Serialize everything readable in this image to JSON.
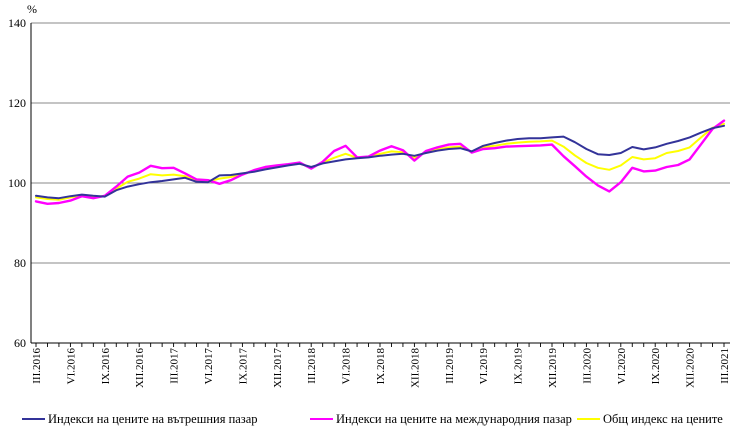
{
  "chart_data": {
    "type": "line",
    "unit": "%",
    "ylabel": "%",
    "ylim": [
      60,
      140
    ],
    "grid": true,
    "legend_position": "bottom",
    "axes": {
      "y_ticks": [
        140,
        120,
        100,
        80,
        60
      ],
      "x_tick_labels": [
        "III.2016",
        "VI.2016",
        "IX.2016",
        "XII.2016",
        "III.2017",
        "VI.2017",
        "IX.2017",
        "XII.2017",
        "III.2018",
        "VI.2018",
        "IX.2018",
        "XII.2018",
        "III.2019",
        "VI.2019",
        "IX.2019",
        "XII.2019",
        "III.2020",
        "VI.2020",
        "IX.2020",
        "XII.2020",
        "III.2021"
      ]
    },
    "x": [
      "III.2016",
      "IV.2016",
      "V.2016",
      "VI.2016",
      "VII.2016",
      "VIII.2016",
      "IX.2016",
      "X.2016",
      "XI.2016",
      "XII.2016",
      "I.2017",
      "II.2017",
      "III.2017",
      "IV.2017",
      "V.2017",
      "VI.2017",
      "VII.2017",
      "VIII.2017",
      "IX.2017",
      "X.2017",
      "XI.2017",
      "XII.2017",
      "I.2018",
      "II.2018",
      "III.2018",
      "IV.2018",
      "V.2018",
      "VI.2018",
      "VII.2018",
      "VIII.2018",
      "IX.2018",
      "X.2018",
      "XI.2018",
      "XII.2018",
      "I.2019",
      "II.2019",
      "III.2019",
      "IV.2019",
      "V.2019",
      "VI.2019",
      "VII.2019",
      "VIII.2019",
      "IX.2019",
      "X.2019",
      "XI.2019",
      "XII.2019",
      "I.2020",
      "II.2020",
      "III.2020",
      "IV.2020",
      "V.2020",
      "VI.2020",
      "VII.2020",
      "VIII.2020",
      "IX.2020",
      "X.2020",
      "XI.2020",
      "XII.2020",
      "I.2021",
      "II.2021",
      "III.2021"
    ],
    "series": [
      {
        "name": "Индекси на цените на вътрешния пазар",
        "color": "#333399",
        "values": [
          96.8,
          96.4,
          96.2,
          96.7,
          97.1,
          96.8,
          96.6,
          98.2,
          99.1,
          99.7,
          100.2,
          100.5,
          100.9,
          101.3,
          100.3,
          100.2,
          101.9,
          102.0,
          102.4,
          102.8,
          103.4,
          103.9,
          104.4,
          104.8,
          104.0,
          104.9,
          105.4,
          105.9,
          106.2,
          106.4,
          106.8,
          107.1,
          107.3,
          106.8,
          107.5,
          108.1,
          108.5,
          108.7,
          107.9,
          109.3,
          110.0,
          110.6,
          111.0,
          111.2,
          111.2,
          111.4,
          111.6,
          110.2,
          108.5,
          107.2,
          107.0,
          107.5,
          109.0,
          108.4,
          108.9,
          109.8,
          110.5,
          111.4,
          112.6,
          113.7,
          114.3
        ]
      },
      {
        "name": "Индекси на цените на международния пазар",
        "color": "#FF00FF",
        "values": [
          95.4,
          94.8,
          95.0,
          95.6,
          96.7,
          96.2,
          96.8,
          99.1,
          101.6,
          102.6,
          104.3,
          103.7,
          103.8,
          102.4,
          100.9,
          100.7,
          99.8,
          100.7,
          102.1,
          103.2,
          104.0,
          104.4,
          104.7,
          105.1,
          103.6,
          105.3,
          108.0,
          109.3,
          106.4,
          106.6,
          108.1,
          109.2,
          108.2,
          105.6,
          108.0,
          108.9,
          109.6,
          109.8,
          107.6,
          108.5,
          108.7,
          109.1,
          109.2,
          109.3,
          109.4,
          109.6,
          106.7,
          104.2,
          101.6,
          99.4,
          97.9,
          100.2,
          103.8,
          102.9,
          103.1,
          104.0,
          104.5,
          105.9,
          109.7,
          113.5,
          115.6
        ]
      },
      {
        "name": "Общ индекс на цените",
        "color": "#FFFF00",
        "values": [
          96.4,
          96.0,
          95.8,
          96.4,
          96.9,
          96.6,
          96.7,
          98.6,
          100.3,
          101.1,
          102.2,
          101.9,
          102.1,
          101.7,
          100.6,
          100.4,
          101.1,
          101.5,
          102.3,
          103.0,
          103.7,
          104.1,
          104.5,
          104.9,
          103.8,
          105.1,
          106.3,
          107.3,
          106.3,
          106.5,
          107.3,
          107.9,
          107.7,
          106.3,
          107.7,
          108.4,
          108.9,
          109.1,
          107.8,
          108.9,
          109.3,
          109.8,
          110.1,
          110.3,
          110.4,
          110.6,
          109.1,
          106.9,
          105.0,
          103.8,
          103.3,
          104.4,
          106.5,
          105.9,
          106.2,
          107.5,
          108.0,
          108.9,
          111.4,
          113.8,
          114.8
        ]
      }
    ],
    "colors": {
      "grid": "#888888",
      "axis": "#000000"
    }
  }
}
